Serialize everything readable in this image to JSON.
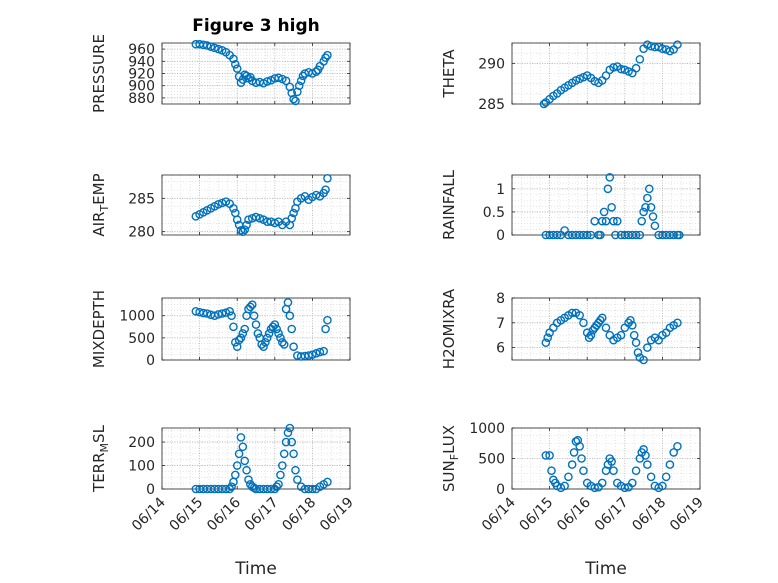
{
  "figure": {
    "title": "Figure 3 high",
    "xlabel": "Time",
    "marker_color": "#0072BD",
    "x_ticks": [
      "06/14",
      "06/15",
      "06/16",
      "06/17",
      "06/18",
      "06/19"
    ]
  },
  "chart_data": [
    {
      "type": "scatter",
      "name": "pressure",
      "ylabel": "PRESSURE",
      "ylim": [
        870,
        970
      ],
      "yticks": [
        "960",
        "940",
        "920",
        "900",
        "880"
      ],
      "ytick_values": [
        960,
        940,
        920,
        900,
        880
      ],
      "xlim": [
        "06/14",
        "06/19"
      ],
      "grid": true,
      "marker": "circle",
      "x": [
        0.9,
        1.0,
        1.1,
        1.2,
        1.3,
        1.4,
        1.5,
        1.6,
        1.7,
        1.8,
        1.9,
        1.95,
        2.0,
        2.05,
        2.1,
        2.15,
        2.2,
        2.25,
        2.3,
        2.35,
        2.4,
        2.5,
        2.6,
        2.7,
        2.8,
        2.9,
        3.0,
        3.1,
        3.2,
        3.3,
        3.4,
        3.45,
        3.5,
        3.55,
        3.6,
        3.65,
        3.7,
        3.75,
        3.8,
        3.9,
        4.0,
        4.1,
        4.15,
        4.2,
        4.3,
        4.35,
        4.4
      ],
      "y": [
        968,
        968,
        967,
        966,
        964,
        962,
        960,
        958,
        955,
        950,
        944,
        935,
        928,
        915,
        905,
        910,
        918,
        916,
        912,
        914,
        908,
        905,
        906,
        904,
        907,
        909,
        912,
        913,
        911,
        908,
        898,
        888,
        878,
        875,
        890,
        900,
        908,
        916,
        920,
        922,
        920,
        923,
        926,
        932,
        940,
        946,
        950
      ]
    },
    {
      "type": "scatter",
      "name": "theta",
      "ylabel": "THETA",
      "ylim": [
        285,
        292.5
      ],
      "yticks": [
        "290",
        "285"
      ],
      "ytick_values": [
        290,
        285
      ],
      "xlim": [
        "06/14",
        "06/19"
      ],
      "grid": true,
      "marker": "circle",
      "x": [
        0.85,
        0.9,
        1.0,
        1.1,
        1.2,
        1.3,
        1.4,
        1.5,
        1.6,
        1.7,
        1.8,
        1.9,
        2.0,
        2.1,
        2.2,
        2.3,
        2.4,
        2.5,
        2.6,
        2.7,
        2.8,
        2.9,
        3.0,
        3.1,
        3.2,
        3.3,
        3.4,
        3.5,
        3.6,
        3.7,
        3.8,
        3.9,
        4.0,
        4.1,
        4.2,
        4.3,
        4.4
      ],
      "y": [
        285.0,
        285.2,
        285.6,
        286.0,
        286.3,
        286.7,
        287.0,
        287.3,
        287.6,
        287.9,
        288.1,
        288.3,
        288.5,
        288.2,
        287.8,
        287.6,
        287.9,
        288.5,
        289.2,
        289.5,
        289.6,
        289.3,
        289.2,
        289.0,
        288.8,
        289.4,
        290.5,
        291.8,
        292.3,
        292.1,
        292.0,
        292.0,
        291.8,
        291.7,
        291.5,
        291.7,
        292.3
      ]
    },
    {
      "type": "scatter",
      "name": "air_temp",
      "ylabel": "AIR_TEMP",
      "ylim": [
        279.5,
        288.5
      ],
      "yticks": [
        "285",
        "280"
      ],
      "ytick_values": [
        285,
        280
      ],
      "xlim": [
        "06/14",
        "06/19"
      ],
      "grid": true,
      "marker": "circle",
      "x": [
        0.9,
        1.0,
        1.1,
        1.2,
        1.3,
        1.4,
        1.5,
        1.6,
        1.7,
        1.8,
        1.9,
        1.95,
        2.0,
        2.05,
        2.1,
        2.15,
        2.2,
        2.25,
        2.3,
        2.4,
        2.5,
        2.6,
        2.7,
        2.8,
        2.9,
        3.0,
        3.1,
        3.2,
        3.3,
        3.4,
        3.45,
        3.5,
        3.55,
        3.6,
        3.7,
        3.8,
        3.9,
        4.0,
        4.1,
        4.2,
        4.3,
        4.35,
        4.4
      ],
      "y": [
        282.3,
        282.6,
        282.9,
        283.2,
        283.5,
        283.8,
        284.1,
        284.3,
        284.5,
        284.2,
        283.5,
        282.8,
        281.8,
        281.0,
        280.2,
        280.0,
        280.3,
        281.0,
        281.8,
        282.0,
        282.2,
        282.0,
        281.8,
        281.5,
        281.5,
        281.3,
        281.5,
        281.0,
        281.5,
        281.0,
        282.0,
        282.8,
        283.5,
        284.5,
        285.0,
        285.3,
        284.8,
        285.2,
        285.5,
        285.3,
        285.8,
        286.3,
        288.0
      ]
    },
    {
      "type": "scatter",
      "name": "rainfall",
      "ylabel": "RAINFALL",
      "ylim": [
        0,
        1.3
      ],
      "yticks": [
        "1",
        "0.5",
        "0"
      ],
      "ytick_values": [
        1,
        0.5,
        0
      ],
      "xlim": [
        "06/14",
        "06/19"
      ],
      "grid": true,
      "marker": "circle",
      "x": [
        0.9,
        1.0,
        1.1,
        1.2,
        1.3,
        1.4,
        1.5,
        1.6,
        1.7,
        1.8,
        1.9,
        2.0,
        2.1,
        2.2,
        2.3,
        2.35,
        2.4,
        2.45,
        2.5,
        2.55,
        2.6,
        2.65,
        2.7,
        2.75,
        2.8,
        2.9,
        3.0,
        3.1,
        3.2,
        3.3,
        3.4,
        3.45,
        3.5,
        3.55,
        3.6,
        3.65,
        3.7,
        3.75,
        3.8,
        3.9,
        4.0,
        4.1,
        4.2,
        4.3,
        4.4,
        4.45
      ],
      "y": [
        0,
        0,
        0,
        0,
        0,
        0.1,
        0,
        0,
        0,
        0,
        0,
        0,
        0,
        0.3,
        0,
        0,
        0.3,
        0.5,
        0.3,
        1.0,
        1.25,
        0.6,
        0.3,
        0,
        0.3,
        0,
        0,
        0,
        0,
        0,
        0,
        0.3,
        0.5,
        0.6,
        0.8,
        1.0,
        0.6,
        0.4,
        0.2,
        0,
        0,
        0,
        0,
        0,
        0,
        0
      ]
    },
    {
      "type": "scatter",
      "name": "mixdepth",
      "ylabel": "MIXDEPTH",
      "ylim": [
        0,
        1400
      ],
      "yticks": [
        "1000",
        "500",
        "0"
      ],
      "ytick_values": [
        1000,
        500,
        0
      ],
      "xlim": [
        "06/14",
        "06/19"
      ],
      "grid": true,
      "marker": "circle",
      "x": [
        0.9,
        1.0,
        1.1,
        1.2,
        1.3,
        1.4,
        1.5,
        1.6,
        1.7,
        1.8,
        1.85,
        1.9,
        1.95,
        2.0,
        2.05,
        2.1,
        2.15,
        2.2,
        2.25,
        2.3,
        2.35,
        2.4,
        2.45,
        2.5,
        2.55,
        2.6,
        2.65,
        2.7,
        2.75,
        2.8,
        2.85,
        2.9,
        2.95,
        3.0,
        3.05,
        3.1,
        3.15,
        3.2,
        3.25,
        3.3,
        3.35,
        3.4,
        3.45,
        3.5,
        3.6,
        3.7,
        3.8,
        3.9,
        4.0,
        4.1,
        4.2,
        4.3,
        4.35,
        4.4
      ],
      "y": [
        1100,
        1080,
        1060,
        1050,
        1020,
        1000,
        1030,
        1050,
        1070,
        1100,
        1000,
        750,
        400,
        300,
        450,
        500,
        600,
        700,
        1000,
        1150,
        1200,
        1250,
        1000,
        800,
        600,
        500,
        350,
        300,
        400,
        500,
        600,
        700,
        750,
        800,
        700,
        600,
        500,
        400,
        350,
        1150,
        1300,
        1000,
        700,
        300,
        100,
        80,
        90,
        100,
        120,
        150,
        180,
        200,
        700,
        900
      ]
    },
    {
      "type": "scatter",
      "name": "h2omixra",
      "ylabel": "H2OMIXRA",
      "ylim": [
        5.5,
        8
      ],
      "yticks": [
        "8",
        "7",
        "6"
      ],
      "ytick_values": [
        8,
        7,
        6
      ],
      "xlim": [
        "06/14",
        "06/19"
      ],
      "grid": true,
      "marker": "circle",
      "x": [
        0.9,
        0.95,
        1.0,
        1.1,
        1.2,
        1.3,
        1.4,
        1.5,
        1.6,
        1.7,
        1.8,
        1.9,
        2.0,
        2.05,
        2.1,
        2.15,
        2.2,
        2.25,
        2.3,
        2.35,
        2.4,
        2.5,
        2.6,
        2.7,
        2.8,
        2.9,
        3.0,
        3.1,
        3.15,
        3.2,
        3.25,
        3.3,
        3.35,
        3.4,
        3.5,
        3.6,
        3.7,
        3.8,
        3.9,
        4.0,
        4.1,
        4.2,
        4.3,
        4.4
      ],
      "y": [
        6.2,
        6.4,
        6.6,
        6.8,
        7.0,
        7.1,
        7.2,
        7.3,
        7.4,
        7.4,
        7.3,
        7.0,
        6.6,
        6.4,
        6.5,
        6.7,
        6.8,
        6.9,
        7.0,
        7.1,
        7.2,
        6.8,
        6.5,
        6.3,
        6.4,
        6.5,
        6.8,
        7.0,
        7.1,
        6.9,
        6.5,
        6.2,
        5.8,
        5.6,
        5.5,
        6.0,
        6.3,
        6.4,
        6.3,
        6.5,
        6.6,
        6.8,
        6.9,
        7.0
      ]
    },
    {
      "type": "scatter",
      "name": "terr_msl",
      "ylabel": "TERR_MSL",
      "ylim": [
        0,
        260
      ],
      "yticks": [
        "200",
        "100",
        "0"
      ],
      "ytick_values": [
        200,
        100,
        0
      ],
      "xlim": [
        "06/14",
        "06/19"
      ],
      "grid": true,
      "marker": "circle",
      "x": [
        0.9,
        1.0,
        1.1,
        1.2,
        1.3,
        1.4,
        1.5,
        1.6,
        1.7,
        1.8,
        1.85,
        1.9,
        1.95,
        2.0,
        2.05,
        2.1,
        2.15,
        2.2,
        2.25,
        2.3,
        2.35,
        2.4,
        2.45,
        2.5,
        2.6,
        2.7,
        2.8,
        2.9,
        3.0,
        3.05,
        3.1,
        3.15,
        3.2,
        3.25,
        3.3,
        3.35,
        3.4,
        3.45,
        3.5,
        3.55,
        3.6,
        3.7,
        3.8,
        3.9,
        4.0,
        4.1,
        4.2,
        4.3,
        4.4
      ],
      "y": [
        0,
        0,
        0,
        0,
        0,
        0,
        0,
        0,
        0,
        0,
        10,
        30,
        60,
        100,
        150,
        220,
        180,
        120,
        80,
        40,
        20,
        10,
        5,
        0,
        0,
        0,
        0,
        0,
        0,
        10,
        20,
        60,
        100,
        150,
        200,
        240,
        260,
        200,
        150,
        80,
        40,
        10,
        0,
        0,
        0,
        0,
        10,
        20,
        30
      ]
    },
    {
      "type": "scatter",
      "name": "sun_flux",
      "ylabel": "SUN_FLUX",
      "ylim": [
        0,
        1000
      ],
      "yticks": [
        "1000",
        "500",
        "0"
      ],
      "ytick_values": [
        1000,
        500,
        0
      ],
      "xlim": [
        "06/14",
        "06/19"
      ],
      "grid": true,
      "marker": "circle",
      "x": [
        0.9,
        1.0,
        1.05,
        1.1,
        1.15,
        1.2,
        1.3,
        1.4,
        1.5,
        1.6,
        1.65,
        1.7,
        1.75,
        1.8,
        1.85,
        1.9,
        2.0,
        2.1,
        2.2,
        2.3,
        2.4,
        2.5,
        2.55,
        2.6,
        2.65,
        2.7,
        2.8,
        2.9,
        3.0,
        3.1,
        3.2,
        3.3,
        3.4,
        3.45,
        3.5,
        3.55,
        3.6,
        3.7,
        3.8,
        3.9,
        4.0,
        4.1,
        4.2,
        4.3,
        4.4
      ],
      "y": [
        550,
        550,
        300,
        150,
        100,
        50,
        20,
        50,
        200,
        400,
        600,
        780,
        800,
        700,
        500,
        300,
        100,
        50,
        20,
        30,
        100,
        300,
        400,
        500,
        450,
        300,
        100,
        50,
        20,
        30,
        100,
        300,
        500,
        600,
        650,
        550,
        400,
        200,
        50,
        20,
        50,
        200,
        400,
        600,
        700
      ]
    }
  ]
}
